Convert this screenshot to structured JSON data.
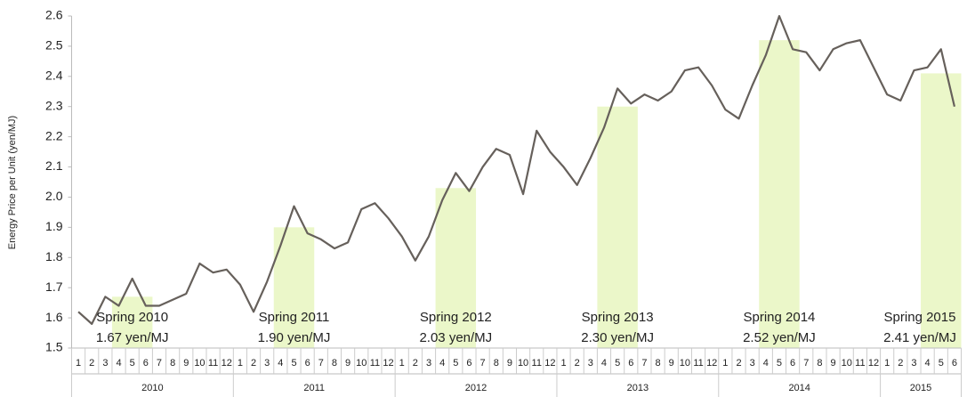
{
  "chart_data": {
    "type": "line",
    "y_label": "Energy Price per Unit (yen/MJ)",
    "categories": [
      "1",
      "2",
      "3",
      "4",
      "5",
      "6",
      "7",
      "8",
      "9",
      "10",
      "11",
      "12",
      "1",
      "2",
      "3",
      "4",
      "5",
      "6",
      "7",
      "8",
      "9",
      "10",
      "11",
      "12",
      "1",
      "2",
      "3",
      "4",
      "5",
      "6",
      "7",
      "8",
      "9",
      "10",
      "11",
      "12",
      "1",
      "2",
      "3",
      "4",
      "5",
      "6",
      "7",
      "8",
      "9",
      "10",
      "11",
      "12",
      "1",
      "2",
      "3",
      "4",
      "5",
      "6",
      "7",
      "8",
      "9",
      "10",
      "11",
      "12",
      "1",
      "2",
      "3",
      "4",
      "5",
      "6"
    ],
    "years": [
      "2010",
      "2011",
      "2012",
      "2013",
      "2014",
      "2015"
    ],
    "series": [
      {
        "color": "#66605b",
        "values": [
          1.62,
          1.58,
          1.67,
          1.64,
          1.73,
          1.64,
          1.64,
          1.66,
          1.68,
          1.78,
          1.75,
          1.76,
          1.71,
          1.62,
          1.72,
          1.84,
          1.97,
          1.88,
          1.86,
          1.83,
          1.85,
          1.96,
          1.98,
          1.93,
          1.87,
          1.79,
          1.87,
          1.99,
          2.08,
          2.02,
          2.1,
          2.16,
          2.14,
          2.01,
          2.22,
          2.15,
          2.1,
          2.04,
          2.13,
          2.23,
          2.36,
          2.31,
          2.34,
          2.32,
          2.35,
          2.42,
          2.43,
          2.37,
          2.29,
          2.26,
          2.37,
          2.47,
          2.6,
          2.49,
          2.48,
          2.42,
          2.49,
          2.51,
          2.52,
          2.43,
          2.34,
          2.32,
          2.42,
          2.43,
          2.49,
          2.3
        ]
      }
    ],
    "spring": {
      "color": "#ebf7c9",
      "labels": [
        "Spring 2010",
        "Spring 2011",
        "Spring 2012",
        "Spring 2013",
        "Spring 2014",
        "Spring 2015"
      ],
      "values": [
        1.67,
        1.9,
        2.03,
        2.3,
        2.52,
        2.41
      ],
      "value_labels": [
        "1.67 yen/MJ",
        "1.90 yen/MJ",
        "2.03 yen/MJ",
        "2.30 yen/MJ",
        "2.52 yen/MJ",
        "2.41 yen/MJ"
      ]
    },
    "ylim": [
      1.5,
      2.6
    ],
    "yticks": [
      1.5,
      1.6,
      1.7,
      1.8,
      1.9,
      {
        "value": 2,
        "label": "2.0"
      },
      2.1,
      2.2,
      2.3,
      2.4,
      2.5,
      2.6
    ],
    "grid": false
  }
}
